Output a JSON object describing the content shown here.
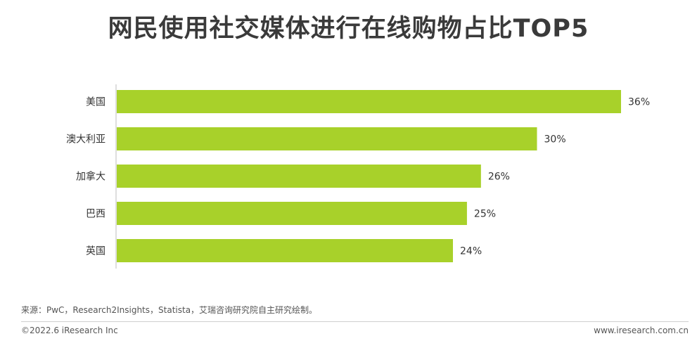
{
  "title": "网民使用社交媒体进行在线购物占比TOP5",
  "source": "来源：PwC，Research2Insights，Statista，艾瑞咨询研究院自主研究绘制。",
  "footer": {
    "copyright": "©2022.6 iResearch Inc",
    "website": "www.iresearch.com.cn"
  },
  "colors": {
    "bar": "#a8d12a"
  },
  "chart_data": {
    "type": "bar",
    "orientation": "horizontal",
    "title": "网民使用社交媒体进行在线购物占比TOP5",
    "categories": [
      "美国",
      "澳大利亚",
      "加拿大",
      "巴西",
      "英国"
    ],
    "values": [
      36,
      30,
      26,
      25,
      24
    ],
    "value_labels": [
      "36%",
      "30%",
      "26%",
      "25%",
      "24%"
    ],
    "xlim": [
      0,
      36
    ],
    "grid": false,
    "legend": "none"
  }
}
